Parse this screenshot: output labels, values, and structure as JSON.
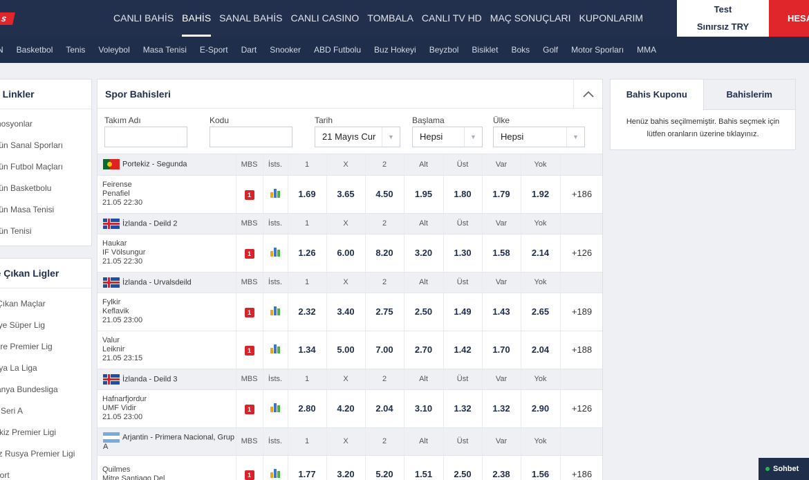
{
  "logo": {
    "text": "s"
  },
  "nav": [
    "CANLI BAHİS",
    "BAHİS",
    "SANAL BAHİS",
    "CANLI CASINO",
    "TOMBALA",
    "CANLI TV HD",
    "MAÇ SONUÇLARI",
    "KUPONLARIM"
  ],
  "user": {
    "name": "Test",
    "balance": "Sınırsız TRY",
    "account_button": "HESAP"
  },
  "sports": [
    "N",
    "Basketbol",
    "Tenis",
    "Voleybol",
    "Masa Tenisi",
    "E-Sport",
    "Dart",
    "Snooker",
    "ABD Futbolu",
    "Buz Hokeyi",
    "Beyzbol",
    "Bisiklet",
    "Boks",
    "Golf",
    "Motor Sporları",
    "MMA"
  ],
  "quick_links": {
    "title": "zlı Linkler",
    "items": [
      "omosyonlar",
      "ünün Sanal Sporları",
      "ünün Futbol Maçları",
      "ünün Basketbolu",
      "ünün Masa Tenisi",
      "ünün Tenisi"
    ]
  },
  "top_leagues": {
    "title": "ne Çıkan Ligler",
    "items": [
      "e Çıkan Maçlar",
      "rkiye Süper Lig",
      "iltere Premier Lig",
      "anya La Liga",
      "manya Bundesliga",
      "ya Seri A",
      "rtekiz Premier Ligi",
      "yaz Rusya Premier Ligi",
      "Sport"
    ]
  },
  "main": {
    "title": "Spor Bahisleri",
    "filters": {
      "team_label": "Takım Adı",
      "code_label": "Kodu",
      "date_label": "Tarih",
      "date_value": "21 Mayıs Cur",
      "start_label": "Başlama",
      "start_value": "Hepsi",
      "country_label": "Ülke",
      "country_value": "Hepsi"
    },
    "col_headers": {
      "mbs": "MBS",
      "stats": "İsts.",
      "c1": "1",
      "cx": "X",
      "c2": "2",
      "alt": "Alt",
      "ust": "Üst",
      "var": "Var",
      "yok": "Yok"
    },
    "leagues": [
      {
        "name": "Portekiz - Segunda",
        "flag": "portugal-flag",
        "events": [
          {
            "home": "Feirense",
            "away": "Penafiel",
            "time": "21.05 22:30",
            "mbs": "1",
            "odds": [
              "1.69",
              "3.65",
              "4.50",
              "1.95",
              "1.80",
              "1.79",
              "1.92"
            ],
            "more": "+186"
          }
        ]
      },
      {
        "name": "İzlanda - Deild 2",
        "flag": "iceland-flag",
        "events": [
          {
            "home": "Haukar",
            "away": "IF Völsungur",
            "time": "21.05 22:30",
            "mbs": "1",
            "odds": [
              "1.26",
              "6.00",
              "8.20",
              "3.20",
              "1.30",
              "1.58",
              "2.14"
            ],
            "more": "+126"
          }
        ]
      },
      {
        "name": "İzlanda - Urvalsdeild",
        "flag": "iceland-flag",
        "events": [
          {
            "home": "Fylkir",
            "away": "Keflavik",
            "time": "21.05 23:00",
            "mbs": "1",
            "odds": [
              "2.32",
              "3.40",
              "2.75",
              "2.50",
              "1.49",
              "1.43",
              "2.65"
            ],
            "more": "+189"
          },
          {
            "home": "Valur",
            "away": "Leiknir",
            "time": "21.05 23:15",
            "mbs": "1",
            "odds": [
              "1.34",
              "5.00",
              "7.00",
              "2.70",
              "1.42",
              "1.70",
              "2.04"
            ],
            "more": "+188"
          }
        ]
      },
      {
        "name": "İzlanda - Deild 3",
        "flag": "iceland-flag",
        "events": [
          {
            "home": "Hafnarfjordur",
            "away": "UMF Vidir",
            "time": "21.05 23:00",
            "mbs": "1",
            "odds": [
              "2.80",
              "4.20",
              "2.04",
              "3.10",
              "1.32",
              "1.32",
              "2.90"
            ],
            "more": "+126"
          }
        ]
      },
      {
        "name": "Arjantin - Primera Nacional, Grup A",
        "flag": "argentina-flag",
        "events": [
          {
            "home": "Quilmes",
            "away": "Mitre Santiago Del",
            "time": "",
            "mbs": "1",
            "odds": [
              "1.77",
              "3.20",
              "5.20",
              "1.51",
              "2.50",
              "2.38",
              "1.56"
            ],
            "more": "+186"
          }
        ]
      }
    ]
  },
  "coupon": {
    "tab_active": "Bahis Kuponu",
    "tab_other": "Bahislerim",
    "message": "Henüz bahis seçilmemiştir. Bahis seçmek için lütfen oranların üzerine tıklayınız."
  },
  "chat": {
    "label": "Sohbet"
  }
}
